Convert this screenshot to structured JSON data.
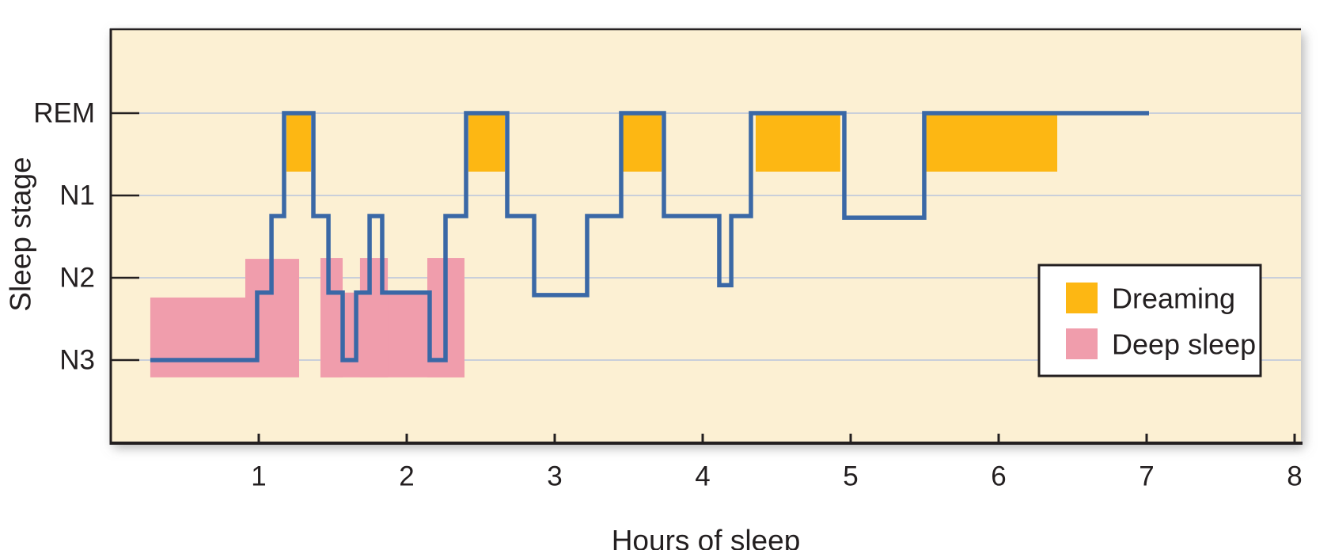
{
  "figure": {
    "x_axis_label": "Hours of sleep",
    "y_axis_label": "Sleep stage",
    "y_tick_labels": [
      "REM",
      "N1",
      "N2",
      "N3"
    ],
    "x_tick_labels": [
      "1",
      "2",
      "3",
      "4",
      "5",
      "6",
      "7",
      "8"
    ]
  },
  "legend": {
    "items": [
      {
        "label": "Dreaming",
        "color": "#FDB713"
      },
      {
        "label": "Deep sleep",
        "color": "#F09DAC"
      }
    ]
  },
  "colors": {
    "page_bg": "#FFFFFF",
    "plot_bg": "#FCF0D3",
    "grid": "#C9CFDA",
    "line": "#3A68A6",
    "dream": "#FDB713",
    "deep": "#F09DAC",
    "axis": "#231F20",
    "legend_bg": "#FFFFFF",
    "legend_border": "#231F20"
  },
  "chart_data": {
    "type": "line",
    "subtype": "step-hypnogram",
    "title": "",
    "xlabel": "Hours of sleep",
    "ylabel": "Sleep stage",
    "x_unit": "hours",
    "xlim": [
      0,
      8.05
    ],
    "stages_order_top_to_bottom": [
      "REM",
      "N1",
      "N2",
      "N3"
    ],
    "stage_levels": {
      "REM": 0,
      "N1": 1,
      "N2": 2,
      "N3": 3
    },
    "x_ticks": [
      1,
      2,
      3,
      4,
      5,
      6,
      7,
      8
    ],
    "grid": "horizontal-only",
    "legend_position": "lower-right",
    "segments": [
      {
        "start": 0.267,
        "end": 0.989,
        "stage": "N3",
        "level": 3.0
      },
      {
        "start": 0.989,
        "end": 1.086,
        "stage": "N2",
        "level": 2.18
      },
      {
        "start": 1.086,
        "end": 1.171,
        "stage": "N1",
        "level": 1.25
      },
      {
        "start": 1.171,
        "end": 1.369,
        "stage": "REM",
        "level": 0.0
      },
      {
        "start": 1.369,
        "end": 1.471,
        "stage": "N1",
        "level": 1.25
      },
      {
        "start": 1.471,
        "end": 1.567,
        "stage": "N2",
        "level": 2.18
      },
      {
        "start": 1.567,
        "end": 1.658,
        "stage": "N3",
        "level": 3.0
      },
      {
        "start": 1.658,
        "end": 1.749,
        "stage": "N2",
        "level": 2.18
      },
      {
        "start": 1.749,
        "end": 1.834,
        "stage": "N1",
        "level": 1.25
      },
      {
        "start": 1.834,
        "end": 2.155,
        "stage": "N2",
        "level": 2.18
      },
      {
        "start": 2.155,
        "end": 2.262,
        "stage": "N3",
        "level": 3.0
      },
      {
        "start": 2.262,
        "end": 2.401,
        "stage": "N1",
        "level": 1.25
      },
      {
        "start": 2.401,
        "end": 2.679,
        "stage": "REM",
        "level": 0.0
      },
      {
        "start": 2.679,
        "end": 2.861,
        "stage": "N1",
        "level": 1.25
      },
      {
        "start": 2.861,
        "end": 3.219,
        "stage": "N2",
        "level": 2.21
      },
      {
        "start": 3.219,
        "end": 3.449,
        "stage": "N1",
        "level": 1.25
      },
      {
        "start": 3.449,
        "end": 3.738,
        "stage": "REM",
        "level": 0.0
      },
      {
        "start": 3.738,
        "end": 4.112,
        "stage": "N1",
        "level": 1.25
      },
      {
        "start": 4.112,
        "end": 4.193,
        "stage": "N2",
        "level": 2.09
      },
      {
        "start": 4.193,
        "end": 4.326,
        "stage": "N1",
        "level": 1.25
      },
      {
        "start": 4.326,
        "end": 4.957,
        "stage": "REM",
        "level": 0.0
      },
      {
        "start": 4.957,
        "end": 5.497,
        "stage": "N1",
        "level": 1.27
      },
      {
        "start": 5.497,
        "end": 7.016,
        "stage": "REM",
        "level": 0.0
      }
    ],
    "dreaming_periods": [
      {
        "start": 1.187,
        "end": 1.353
      },
      {
        "start": 2.417,
        "end": 2.663
      },
      {
        "start": 3.46,
        "end": 3.722
      },
      {
        "start": 4.358,
        "end": 4.93
      },
      {
        "start": 5.508,
        "end": 6.396
      }
    ],
    "dreaming_fill_depth_levels": 0.71,
    "deep_sleep_blocks": [
      {
        "start": 0.267,
        "end": 0.909,
        "top_level": 2.24,
        "bottom_level": 3.21
      },
      {
        "start": 0.909,
        "end": 1.273,
        "top_level": 1.77,
        "bottom_level": 3.21
      },
      {
        "start": 1.417,
        "end": 2.39,
        "top_level": 2.18,
        "bottom_level": 3.21
      },
      {
        "start": 1.417,
        "end": 1.567,
        "top_level": 1.76,
        "bottom_level": 3.21
      },
      {
        "start": 1.684,
        "end": 1.872,
        "top_level": 1.76,
        "bottom_level": 3.21
      },
      {
        "start": 2.139,
        "end": 2.39,
        "top_level": 1.76,
        "bottom_level": 3.21
      }
    ]
  }
}
